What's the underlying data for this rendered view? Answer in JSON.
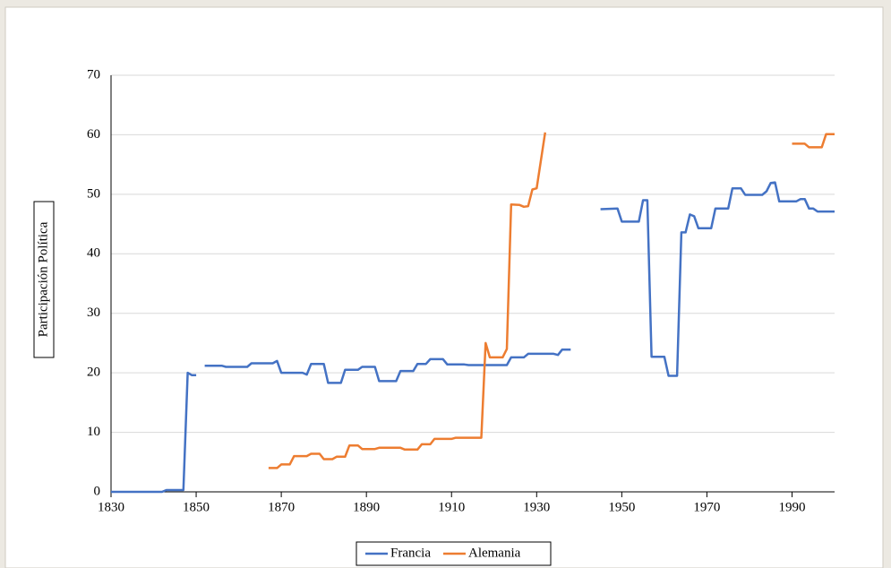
{
  "chart_data": {
    "type": "line",
    "ylabel": "Participación Política",
    "xlim": [
      1830,
      2000
    ],
    "xticks": [
      1830,
      1850,
      1870,
      1890,
      1910,
      1930,
      1950,
      1970,
      1990
    ],
    "ylim": [
      0,
      70
    ],
    "yticks": [
      0,
      10,
      20,
      30,
      40,
      50,
      60,
      70
    ],
    "grid": true,
    "legend": "bottom",
    "series": [
      {
        "name": "Francia",
        "color": "#4472c4",
        "x": [
          1830,
          1842,
          1843,
          1847,
          1848,
          1849,
          1850,
          1851,
          1852,
          1856,
          1857,
          1862,
          1863,
          1868,
          1869,
          1870,
          1875,
          1876,
          1877,
          1880,
          1881,
          1884,
          1885,
          1888,
          1889,
          1892,
          1893,
          1897,
          1898,
          1901,
          1902,
          1904,
          1905,
          1908,
          1909,
          1913,
          1914,
          1923,
          1924,
          1927,
          1928,
          1934,
          1935,
          1936,
          1938,
          1941,
          1945,
          1949,
          1950,
          1954,
          1955,
          1956,
          1957,
          1960,
          1961,
          1963,
          1964,
          1965,
          1966,
          1967,
          1968,
          1971,
          1972,
          1975,
          1976,
          1978,
          1979,
          1983,
          1984,
          1985,
          1986,
          1987,
          1991,
          1992,
          1993,
          1994,
          1995,
          1996,
          2000
        ],
        "values": [
          0,
          0,
          0.3,
          0.3,
          20,
          19.6,
          19.6,
          null,
          21.2,
          21.2,
          21,
          21,
          21.6,
          21.6,
          22,
          20,
          20,
          19.7,
          21.5,
          21.5,
          18.3,
          18.3,
          20.5,
          20.5,
          21,
          21,
          18.6,
          18.6,
          20.3,
          20.3,
          21.5,
          21.5,
          22.3,
          22.3,
          21.4,
          21.4,
          21.3,
          21.3,
          22.6,
          22.6,
          23.2,
          23.2,
          23,
          23.9,
          23.9,
          null,
          47.5,
          47.6,
          45.4,
          45.4,
          49,
          49,
          22.7,
          22.7,
          19.5,
          19.5,
          43.6,
          43.6,
          46.6,
          46.3,
          44.3,
          44.3,
          47.6,
          47.6,
          51,
          51,
          49.9,
          49.9,
          50.5,
          51.9,
          52,
          48.8,
          48.8,
          49.2,
          49.2,
          47.6,
          47.6,
          47.1,
          47.1
        ]
      },
      {
        "name": "Alemania",
        "color": "#ed7d31",
        "x": [
          1867,
          1869,
          1870,
          1872,
          1873,
          1876,
          1877,
          1879,
          1880,
          1882,
          1883,
          1885,
          1886,
          1888,
          1889,
          1892,
          1893,
          1898,
          1899,
          1902,
          1903,
          1905,
          1906,
          1910,
          1911,
          1917,
          1918,
          1919,
          1922,
          1923,
          1924,
          1926,
          1927,
          1928,
          1929,
          1930,
          1932,
          1960,
          1990,
          1993,
          1994,
          1997,
          1998,
          2000
        ],
        "values": [
          4,
          4,
          4.6,
          4.6,
          6,
          6,
          6.4,
          6.4,
          5.5,
          5.5,
          5.9,
          5.9,
          7.8,
          7.8,
          7.2,
          7.2,
          7.4,
          7.4,
          7.1,
          7.1,
          8,
          8,
          8.9,
          8.9,
          9.1,
          9.1,
          25,
          22.6,
          22.6,
          24,
          48.3,
          48.2,
          47.9,
          48,
          50.8,
          51,
          60.4,
          null,
          58.5,
          58.5,
          57.9,
          57.9,
          60.1,
          60.1
        ]
      }
    ]
  }
}
